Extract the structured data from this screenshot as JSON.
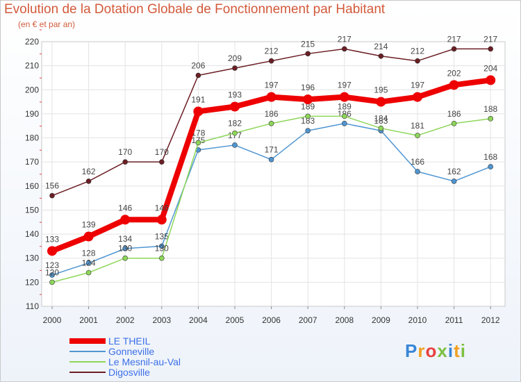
{
  "chart_data": {
    "type": "line",
    "title": "Evolution de la Dotation Globale de Fonctionnement par Habitant",
    "subtitle": "(en € et par an)",
    "xlabel": "",
    "ylabel": "",
    "ylim": [
      110,
      220
    ],
    "yticks": [
      110,
      120,
      130,
      140,
      150,
      160,
      170,
      180,
      190,
      200,
      210,
      220
    ],
    "categories": [
      "2000",
      "2001",
      "2002",
      "2003",
      "2004",
      "2005",
      "2006",
      "2007",
      "2008",
      "2009",
      "2010",
      "2011",
      "2012"
    ],
    "grid": true,
    "legend_position": "bottom-left",
    "series": [
      {
        "name": "LE THEIL",
        "color": "#ee0000",
        "values": [
          133,
          139,
          146,
          146,
          191,
          193,
          197,
          196,
          197,
          195,
          197,
          202,
          204
        ]
      },
      {
        "name": "Gonneville",
        "color": "#4f96d2",
        "values": [
          123,
          128,
          134,
          135,
          175,
          177,
          171,
          183,
          186,
          183,
          166,
          162,
          168
        ]
      },
      {
        "name": "Le Mesnil-au-Val",
        "color": "#8ed65a",
        "values": [
          120,
          124,
          130,
          130,
          178,
          182,
          186,
          189,
          189,
          184,
          181,
          186,
          188
        ]
      },
      {
        "name": "Digosville",
        "color": "#6b1e24",
        "values": [
          156,
          162,
          170,
          170,
          206,
          209,
          212,
          215,
          217,
          214,
          212,
          217,
          217
        ]
      }
    ]
  },
  "logo": {
    "text": "Proxiti",
    "colors": [
      "#3a86d6",
      "#f0a020",
      "#e84040",
      "#7cc040",
      "#3a86d6",
      "#f0a020",
      "#7cc040"
    ]
  }
}
